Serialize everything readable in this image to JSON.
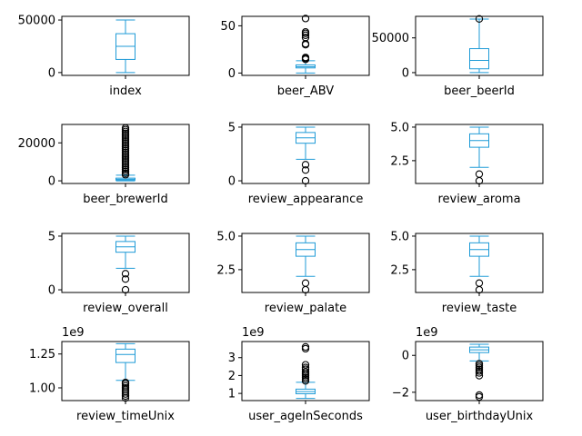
{
  "style": {
    "box_color": "#1f9bd7",
    "flier_color": "#000000"
  },
  "chart_data": [
    {
      "type": "boxplot",
      "xlabel": "index",
      "ylim": [
        -2700,
        53500
      ],
      "yticks": [
        0,
        50000
      ],
      "ytick_labels": [
        "0",
        "50000"
      ],
      "box": {
        "whislo": 0,
        "q1": 12500,
        "med": 25000,
        "q3": 37000,
        "whishi": 50000
      },
      "fliers": []
    },
    {
      "type": "boxplot",
      "xlabel": "beer_ABV",
      "ylim": [
        -2.5,
        60
      ],
      "yticks": [
        0,
        50
      ],
      "ytick_labels": [
        "0",
        "50"
      ],
      "box": {
        "whislo": 0.05,
        "q1": 5.4,
        "med": 6.6,
        "q3": 8.6,
        "whishi": 13.0
      },
      "fliers": [
        14.5,
        15.5,
        16.5,
        30,
        31,
        37.5,
        40,
        42,
        43.5,
        57.7
      ]
    },
    {
      "type": "boxplot",
      "xlabel": "beer_beerId",
      "ylim": [
        -4000,
        81000
      ],
      "yticks": [
        0,
        50000
      ],
      "ytick_labels": [
        "0",
        "50000"
      ],
      "box": {
        "whislo": 5,
        "q1": 5500,
        "med": 17500,
        "q3": 34500,
        "whishi": 77000
      },
      "fliers": [
        77300
      ]
    },
    {
      "type": "boxplot",
      "xlabel": "beer_brewerId",
      "ylim": [
        -1400,
        29700
      ],
      "yticks": [
        0,
        20000
      ],
      "ytick_labels": [
        "0",
        "20000"
      ],
      "box": {
        "whislo": 1,
        "q1": 395,
        "med": 840,
        "q3": 1420,
        "whishi": 2950
      },
      "fliers": [
        3200,
        4000,
        5000,
        6000,
        7000,
        8000,
        9000,
        10000,
        11000,
        12000,
        13000,
        14000,
        15000,
        16000,
        17000,
        18000,
        19000,
        20000,
        21000,
        22000,
        23000,
        24000,
        25000,
        26000,
        27000,
        27900
      ]
    },
    {
      "type": "boxplot",
      "xlabel": "review_appearance",
      "ylim": [
        -0.25,
        5.25
      ],
      "yticks": [
        0,
        5
      ],
      "ytick_labels": [
        "0",
        "5"
      ],
      "box": {
        "whislo": 2.0,
        "q1": 3.5,
        "med": 4.0,
        "q3": 4.5,
        "whishi": 5.0
      },
      "fliers": [
        0,
        1.0,
        1.5
      ]
    },
    {
      "type": "boxplot",
      "xlabel": "review_aroma",
      "ylim": [
        0.8,
        5.2
      ],
      "yticks": [
        2.5,
        5.0
      ],
      "ytick_labels": [
        "2.5",
        "5.0"
      ],
      "box": {
        "whislo": 2.0,
        "q1": 3.5,
        "med": 4.0,
        "q3": 4.5,
        "whishi": 5.0
      },
      "fliers": [
        1.0,
        1.5
      ]
    },
    {
      "type": "boxplot",
      "xlabel": "review_overall",
      "ylim": [
        -0.25,
        5.25
      ],
      "yticks": [
        0,
        5
      ],
      "ytick_labels": [
        "0",
        "5"
      ],
      "box": {
        "whislo": 2.0,
        "q1": 3.5,
        "med": 4.0,
        "q3": 4.5,
        "whishi": 5.0
      },
      "fliers": [
        0,
        1.0,
        1.5
      ]
    },
    {
      "type": "boxplot",
      "xlabel": "review_palate",
      "ylim": [
        0.8,
        5.2
      ],
      "yticks": [
        2.5,
        5.0
      ],
      "ytick_labels": [
        "2.5",
        "5.0"
      ],
      "box": {
        "whislo": 2.0,
        "q1": 3.5,
        "med": 4.0,
        "q3": 4.5,
        "whishi": 5.0
      },
      "fliers": [
        1.0,
        1.5
      ]
    },
    {
      "type": "boxplot",
      "xlabel": "review_taste",
      "ylim": [
        0.8,
        5.2
      ],
      "yticks": [
        2.5,
        5.0
      ],
      "ytick_labels": [
        "2.5",
        "5.0"
      ],
      "box": {
        "whislo": 2.0,
        "q1": 3.5,
        "med": 4.0,
        "q3": 4.5,
        "whishi": 5.0
      },
      "fliers": [
        1.0,
        1.5
      ]
    },
    {
      "type": "boxplot",
      "xlabel": "review_timeUnix",
      "offset_label": "1e9",
      "ylim": [
        0.906,
        1.342
      ],
      "yticks": [
        1.0,
        1.25
      ],
      "ytick_labels": [
        "1.00",
        "1.25"
      ],
      "box": {
        "whislo": 1.055,
        "q1": 1.187,
        "med": 1.246,
        "q3": 1.286,
        "whishi": 1.326
      },
      "fliers": [
        0.925,
        0.94,
        0.955,
        0.97,
        0.985,
        1.0,
        1.015,
        1.03,
        1.04
      ]
    },
    {
      "type": "boxplot",
      "xlabel": "user_ageInSeconds",
      "offset_label": "1e9",
      "ylim": [
        0.6,
        3.9
      ],
      "yticks": [
        1,
        2,
        3
      ],
      "ytick_labels": [
        "1",
        "2",
        "3"
      ],
      "box": {
        "whislo": 0.72,
        "q1": 0.98,
        "med": 1.1,
        "q3": 1.24,
        "whishi": 1.62
      },
      "fliers": [
        1.7,
        1.8,
        1.9,
        2.0,
        2.1,
        2.2,
        2.35,
        2.45,
        2.6,
        3.5,
        3.6
      ]
    },
    {
      "type": "boxplot",
      "xlabel": "user_birthdayUnix",
      "offset_label": "1e9",
      "ylim": [
        -2.45,
        0.75
      ],
      "yticks": [
        -2,
        0
      ],
      "ytick_labels": [
        "−2",
        "0"
      ],
      "box": {
        "whislo": -0.3,
        "q1": 0.15,
        "med": 0.3,
        "q3": 0.45,
        "whishi": 0.6
      },
      "fliers": [
        -0.45,
        -0.55,
        -0.65,
        -0.75,
        -0.85,
        -0.95,
        -1.1,
        -2.15,
        -2.25
      ]
    }
  ]
}
